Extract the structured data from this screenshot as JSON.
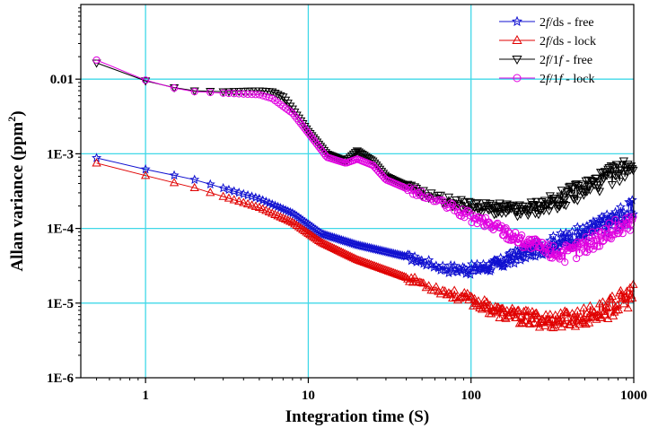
{
  "chart_data": {
    "type": "scatter",
    "xlabel": "Integration time (S)",
    "ylabel": "Allan variance (ppm",
    "ylabel_sup": "2",
    "ylabel_close": ")",
    "xscale": "log",
    "yscale": "log",
    "xlim": [
      0.4,
      1000
    ],
    "ylim": [
      1e-06,
      0.1
    ],
    "grid": true,
    "x_ticks": [
      {
        "value": 1,
        "label": "1"
      },
      {
        "value": 10,
        "label": "10"
      },
      {
        "value": 100,
        "label": "100"
      },
      {
        "value": 1000,
        "label": "1000"
      }
    ],
    "y_ticks": [
      {
        "value": 0.01,
        "label": "0.01"
      },
      {
        "value": 0.001,
        "label": "1E-3"
      },
      {
        "value": 0.0001,
        "label": "1E-4"
      },
      {
        "value": 1e-05,
        "label": "1E-5"
      },
      {
        "value": 1e-06,
        "label": "1E-6"
      }
    ],
    "legend_position": "top-right",
    "series": [
      {
        "name": "2f/ds - free",
        "name_parts": [
          "2",
          "f",
          "/ds - free"
        ],
        "color": "#1010d0",
        "marker": "star",
        "anchors": [
          [
            0.5,
            0.00088
          ],
          [
            1,
            0.00062
          ],
          [
            2,
            0.00045
          ],
          [
            5,
            0.00025
          ],
          [
            8,
            0.00016
          ],
          [
            12,
            8.5e-05
          ],
          [
            20,
            6e-05
          ],
          [
            40,
            4.2e-05
          ],
          [
            70,
            2.9e-05
          ],
          [
            100,
            2.8e-05
          ],
          [
            150,
            3.3e-05
          ],
          [
            200,
            4.5e-05
          ],
          [
            300,
            6e-05
          ],
          [
            500,
            8.5e-05
          ],
          [
            700,
            0.00012
          ],
          [
            1000,
            0.000175
          ]
        ]
      },
      {
        "name": "2f/ds - lock",
        "name_parts": [
          "2",
          "f",
          "/ds - lock"
        ],
        "color": "#e00000",
        "marker": "triangle-up",
        "anchors": [
          [
            0.5,
            0.00075
          ],
          [
            1,
            0.00051
          ],
          [
            2,
            0.00035
          ],
          [
            5,
            0.00019
          ],
          [
            8,
            0.00012
          ],
          [
            12,
            6.5e-05
          ],
          [
            20,
            3.8e-05
          ],
          [
            40,
            2.2e-05
          ],
          [
            70,
            1.4e-05
          ],
          [
            100,
            1.1e-05
          ],
          [
            150,
            7.5e-06
          ],
          [
            200,
            6.5e-06
          ],
          [
            300,
            5.8e-06
          ],
          [
            500,
            6.5e-06
          ],
          [
            700,
            8.5e-06
          ],
          [
            1000,
            1.3e-05
          ]
        ]
      },
      {
        "name": "2f/1f - free",
        "name_parts": [
          "2",
          "f",
          "/1",
          "f",
          " - free"
        ],
        "color": "#000000",
        "marker": "triangle-down",
        "anchors": [
          [
            0.5,
            0.0165
          ],
          [
            1,
            0.0095
          ],
          [
            1.5,
            0.0077
          ],
          [
            2,
            0.007
          ],
          [
            3,
            0.0068
          ],
          [
            5,
            0.007
          ],
          [
            6,
            0.0068
          ],
          [
            7,
            0.0058
          ],
          [
            8,
            0.004
          ],
          [
            10,
            0.002
          ],
          [
            13,
            0.001
          ],
          [
            17,
            0.0008
          ],
          [
            20,
            0.0011
          ],
          [
            25,
            0.0008
          ],
          [
            30,
            0.0005
          ],
          [
            50,
            0.0003
          ],
          [
            80,
            0.00022
          ],
          [
            100,
            0.0002
          ],
          [
            150,
            0.00018
          ],
          [
            200,
            0.00017
          ],
          [
            300,
            0.00021
          ],
          [
            500,
            0.00035
          ],
          [
            700,
            0.00048
          ],
          [
            1000,
            0.00078
          ]
        ]
      },
      {
        "name": "2f/1f - lock",
        "name_parts": [
          "2",
          "f",
          "/1",
          "f",
          " - lock"
        ],
        "color": "#e000e0",
        "marker": "circle",
        "anchors": [
          [
            0.5,
            0.018
          ],
          [
            1,
            0.0097
          ],
          [
            1.5,
            0.0076
          ],
          [
            2,
            0.0068
          ],
          [
            3,
            0.0065
          ],
          [
            5,
            0.0062
          ],
          [
            6,
            0.0055
          ],
          [
            8,
            0.0035
          ],
          [
            10,
            0.0019
          ],
          [
            13,
            0.0009
          ],
          [
            17,
            0.00075
          ],
          [
            20,
            0.00085
          ],
          [
            25,
            0.0007
          ],
          [
            30,
            0.00045
          ],
          [
            50,
            0.00028
          ],
          [
            80,
            0.00018
          ],
          [
            100,
            0.00014
          ],
          [
            150,
            0.0001
          ],
          [
            200,
            7e-05
          ],
          [
            300,
            5e-05
          ],
          [
            400,
            4.5e-05
          ],
          [
            500,
            6e-05
          ],
          [
            700,
            9e-05
          ],
          [
            1000,
            0.00012
          ]
        ]
      }
    ]
  }
}
